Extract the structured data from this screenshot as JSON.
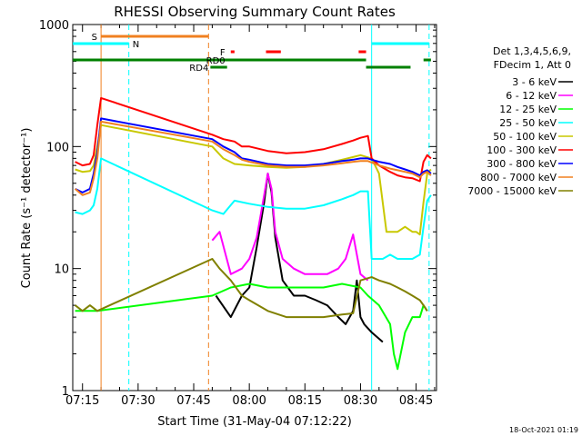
{
  "chart_data": {
    "type": "line",
    "title": "RHESSI Observing Summary Count Rates",
    "xlabel": "Start Time (31-May-04 07:12:22)",
    "ylabel": "Count Rate (s⁻¹ detector⁻¹)",
    "y_scale": "log",
    "ylim": [
      1,
      1000
    ],
    "xlim": [
      "07:12:22",
      "08:50:30"
    ],
    "x_ticks": [
      "07:15",
      "07:30",
      "07:45",
      "08:00",
      "08:15",
      "08:30",
      "08:45"
    ],
    "y_ticks": [
      "1",
      "10",
      "100",
      "1000"
    ],
    "legend": {
      "header": [
        "Det 1,3,4,5,6,9,",
        "FDecim 1, Att 0"
      ],
      "placement": "right"
    },
    "flags": [
      {
        "label": "S",
        "color": "#f08020",
        "intervals": [
          [
            "07:20:00",
            "07:49:00"
          ]
        ]
      },
      {
        "label": "N",
        "color": "#00ffff",
        "intervals": [
          [
            "07:12:22",
            "07:27:30"
          ],
          [
            "08:33:00",
            "08:48:30"
          ]
        ]
      },
      {
        "label": "F",
        "color": "#ff0000",
        "intervals": [
          [
            "07:55:00",
            "07:56:00"
          ],
          [
            "08:04:30",
            "08:08:30"
          ],
          [
            "08:29:30",
            "08:31:30"
          ]
        ]
      },
      {
        "label": "RD0",
        "color": "#008000",
        "intervals": [
          [
            "07:12:22",
            "08:31:30"
          ],
          [
            "08:47:00",
            "08:49:00"
          ]
        ]
      },
      {
        "label": "RD4",
        "color": "#008000",
        "intervals": [
          [
            "07:49:30",
            "07:54:00"
          ],
          [
            "08:31:30",
            "08:43:30"
          ]
        ]
      }
    ],
    "vlines": [
      {
        "t": "07:20:00",
        "color": "#f08020",
        "style": "solid"
      },
      {
        "t": "07:27:30",
        "color": "#00ffff",
        "style": "dashed"
      },
      {
        "t": "07:49:00",
        "color": "#f08020",
        "style": "dashed"
      },
      {
        "t": "08:33:00",
        "color": "#00ffff",
        "style": "solid"
      },
      {
        "t": "08:48:30",
        "color": "#00ffff",
        "style": "dashed"
      }
    ],
    "series": [
      {
        "name": "3 - 6 keV",
        "color": "#000000",
        "points": [
          [
            "07:51",
            6
          ],
          [
            "07:55",
            4
          ],
          [
            "07:58",
            6
          ],
          [
            "08:00",
            7
          ],
          [
            "08:02",
            15
          ],
          [
            "08:04",
            35
          ],
          [
            "08:05",
            60
          ],
          [
            "08:06",
            42
          ],
          [
            "08:07",
            18
          ],
          [
            "08:09",
            8
          ],
          [
            "08:12",
            6
          ],
          [
            "08:15",
            6
          ],
          [
            "08:18",
            5.5
          ],
          [
            "08:21",
            5
          ],
          [
            "08:24",
            4
          ],
          [
            "08:26",
            3.5
          ],
          [
            "08:28",
            4.5
          ],
          [
            "08:29",
            8
          ],
          [
            "08:30",
            4
          ],
          [
            "08:31",
            3.5
          ],
          [
            "08:33",
            3
          ],
          [
            "08:36",
            2.5
          ]
        ]
      },
      {
        "name": "6 - 12 keV",
        "color": "#ff00ff",
        "points": [
          [
            "07:50",
            17
          ],
          [
            "07:52",
            20
          ],
          [
            "07:55",
            9
          ],
          [
            "07:58",
            10
          ],
          [
            "08:00",
            12
          ],
          [
            "08:02",
            18
          ],
          [
            "08:04",
            40
          ],
          [
            "08:05",
            60
          ],
          [
            "08:06",
            45
          ],
          [
            "08:07",
            20
          ],
          [
            "08:09",
            12
          ],
          [
            "08:12",
            10
          ],
          [
            "08:15",
            9
          ],
          [
            "08:18",
            9
          ],
          [
            "08:21",
            9
          ],
          [
            "08:24",
            10
          ],
          [
            "08:26",
            12
          ],
          [
            "08:28",
            19
          ],
          [
            "08:30",
            9
          ],
          [
            "08:32",
            8
          ]
        ]
      },
      {
        "name": "12 - 25 keV",
        "color": "#00ff00",
        "points": [
          [
            "07:13",
            4.5
          ],
          [
            "07:16",
            4.5
          ],
          [
            "07:19",
            4.5
          ],
          [
            "07:50",
            6
          ],
          [
            "07:55",
            7
          ],
          [
            "08:00",
            7.5
          ],
          [
            "08:05",
            7
          ],
          [
            "08:10",
            7
          ],
          [
            "08:15",
            7
          ],
          [
            "08:20",
            7
          ],
          [
            "08:25",
            7.5
          ],
          [
            "08:30",
            7
          ],
          [
            "08:32",
            6
          ],
          [
            "08:35",
            5
          ],
          [
            "08:38",
            3.5
          ],
          [
            "08:39",
            2
          ],
          [
            "08:40",
            1.5
          ],
          [
            "08:42",
            3
          ],
          [
            "08:44",
            4
          ],
          [
            "08:46",
            4
          ],
          [
            "08:47",
            5
          ],
          [
            "08:48",
            4.5
          ]
        ]
      },
      {
        "name": "25 - 50 keV",
        "color": "#00ffff",
        "points": [
          [
            "07:13",
            29
          ],
          [
            "07:15",
            28
          ],
          [
            "07:17",
            30
          ],
          [
            "07:18",
            33
          ],
          [
            "07:19",
            45
          ],
          [
            "07:20",
            80
          ],
          [
            "07:50",
            30
          ],
          [
            "07:53",
            28
          ],
          [
            "07:56",
            36
          ],
          [
            "08:00",
            34
          ],
          [
            "08:05",
            32
          ],
          [
            "08:10",
            31
          ],
          [
            "08:15",
            31
          ],
          [
            "08:20",
            33
          ],
          [
            "08:25",
            37
          ],
          [
            "08:28",
            40
          ],
          [
            "08:30",
            43
          ],
          [
            "08:32",
            43
          ],
          [
            "08:33",
            12
          ],
          [
            "08:36",
            12
          ],
          [
            "08:38",
            13
          ],
          [
            "08:40",
            12
          ],
          [
            "08:42",
            12
          ],
          [
            "08:44",
            12
          ],
          [
            "08:46",
            13
          ],
          [
            "08:47",
            22
          ],
          [
            "08:48",
            36
          ],
          [
            "08:49",
            40
          ]
        ]
      },
      {
        "name": "50 - 100 keV",
        "color": "#c8c800",
        "points": [
          [
            "07:13",
            65
          ],
          [
            "07:15",
            62
          ],
          [
            "07:17",
            63
          ],
          [
            "07:18",
            70
          ],
          [
            "07:19",
            100
          ],
          [
            "07:20",
            150
          ],
          [
            "07:50",
            100
          ],
          [
            "07:53",
            80
          ],
          [
            "07:56",
            72
          ],
          [
            "08:00",
            70
          ],
          [
            "08:05",
            68
          ],
          [
            "08:10",
            67
          ],
          [
            "08:15",
            68
          ],
          [
            "08:20",
            72
          ],
          [
            "08:25",
            78
          ],
          [
            "08:28",
            82
          ],
          [
            "08:30",
            85
          ],
          [
            "08:33",
            80
          ],
          [
            "08:35",
            60
          ],
          [
            "08:37",
            20
          ],
          [
            "08:40",
            20
          ],
          [
            "08:42",
            22
          ],
          [
            "08:44",
            20
          ],
          [
            "08:45",
            20
          ],
          [
            "08:46",
            19
          ],
          [
            "08:47",
            35
          ],
          [
            "08:48",
            60
          ],
          [
            "08:49",
            65
          ]
        ]
      },
      {
        "name": "100 - 300 keV",
        "color": "#ff0000",
        "points": [
          [
            "07:13",
            75
          ],
          [
            "07:15",
            70
          ],
          [
            "07:17",
            72
          ],
          [
            "07:18",
            85
          ],
          [
            "07:19",
            150
          ],
          [
            "07:20",
            250
          ],
          [
            "07:50",
            125
          ],
          [
            "07:53",
            115
          ],
          [
            "07:56",
            110
          ],
          [
            "07:58",
            100
          ],
          [
            "08:00",
            100
          ],
          [
            "08:05",
            92
          ],
          [
            "08:10",
            88
          ],
          [
            "08:15",
            90
          ],
          [
            "08:20",
            95
          ],
          [
            "08:25",
            105
          ],
          [
            "08:28",
            112
          ],
          [
            "08:30",
            118
          ],
          [
            "08:32",
            122
          ],
          [
            "08:33",
            80
          ],
          [
            "08:35",
            70
          ],
          [
            "08:38",
            62
          ],
          [
            "08:40",
            58
          ],
          [
            "08:42",
            56
          ],
          [
            "08:44",
            55
          ],
          [
            "08:46",
            52
          ],
          [
            "08:47",
            75
          ],
          [
            "08:48",
            85
          ],
          [
            "08:49",
            80
          ]
        ]
      },
      {
        "name": "300 - 800 keV",
        "color": "#0000ff",
        "points": [
          [
            "07:13",
            45
          ],
          [
            "07:15",
            42
          ],
          [
            "07:17",
            45
          ],
          [
            "07:18",
            60
          ],
          [
            "07:19",
            90
          ],
          [
            "07:20",
            170
          ],
          [
            "07:50",
            115
          ],
          [
            "07:53",
            100
          ],
          [
            "07:56",
            90
          ],
          [
            "07:58",
            80
          ],
          [
            "08:00",
            78
          ],
          [
            "08:05",
            72
          ],
          [
            "08:10",
            70
          ],
          [
            "08:15",
            70
          ],
          [
            "08:20",
            72
          ],
          [
            "08:25",
            76
          ],
          [
            "08:28",
            78
          ],
          [
            "08:30",
            80
          ],
          [
            "08:32",
            80
          ],
          [
            "08:33",
            78
          ],
          [
            "08:35",
            75
          ],
          [
            "08:38",
            72
          ],
          [
            "08:40",
            68
          ],
          [
            "08:42",
            65
          ],
          [
            "08:44",
            62
          ],
          [
            "08:46",
            58
          ],
          [
            "08:47",
            62
          ],
          [
            "08:48",
            64
          ],
          [
            "08:49",
            60
          ]
        ]
      },
      {
        "name": "800 - 7000 keV",
        "color": "#f08020",
        "points": [
          [
            "07:13",
            45
          ],
          [
            "07:15",
            40
          ],
          [
            "07:17",
            42
          ],
          [
            "07:18",
            55
          ],
          [
            "07:19",
            80
          ],
          [
            "07:20",
            160
          ],
          [
            "07:50",
            110
          ],
          [
            "07:53",
            95
          ],
          [
            "07:56",
            85
          ],
          [
            "07:58",
            78
          ],
          [
            "08:00",
            75
          ],
          [
            "08:05",
            70
          ],
          [
            "08:10",
            68
          ],
          [
            "08:15",
            68
          ],
          [
            "08:20",
            70
          ],
          [
            "08:25",
            73
          ],
          [
            "08:28",
            75
          ],
          [
            "08:30",
            76
          ],
          [
            "08:32",
            76
          ],
          [
            "08:33",
            74
          ],
          [
            "08:35",
            70
          ],
          [
            "08:38",
            66
          ],
          [
            "08:40",
            64
          ],
          [
            "08:42",
            62
          ],
          [
            "08:44",
            60
          ],
          [
            "08:46",
            56
          ],
          [
            "08:47",
            60
          ],
          [
            "08:48",
            62
          ],
          [
            "08:49",
            58
          ]
        ]
      },
      {
        "name": "7000 - 15000 keV",
        "color": "#808000",
        "points": [
          [
            "07:13",
            5
          ],
          [
            "07:15",
            4.5
          ],
          [
            "07:17",
            5
          ],
          [
            "07:19",
            4.5
          ],
          [
            "07:50",
            12
          ],
          [
            "07:52",
            10
          ],
          [
            "07:55",
            8
          ],
          [
            "07:58",
            6
          ],
          [
            "08:00",
            5.5
          ],
          [
            "08:05",
            4.5
          ],
          [
            "08:10",
            4
          ],
          [
            "08:15",
            4
          ],
          [
            "08:20",
            4
          ],
          [
            "08:25",
            4.2
          ],
          [
            "08:28",
            4.3
          ],
          [
            "08:30",
            8
          ],
          [
            "08:33",
            8.5
          ],
          [
            "08:35",
            8
          ],
          [
            "08:38",
            7.5
          ],
          [
            "08:40",
            7
          ],
          [
            "08:42",
            6.5
          ],
          [
            "08:44",
            6
          ],
          [
            "08:46",
            5.5
          ],
          [
            "08:47",
            5
          ],
          [
            "08:48",
            4.5
          ]
        ]
      }
    ]
  },
  "footer": {
    "timestamp": "18-Oct-2021 01:19"
  }
}
